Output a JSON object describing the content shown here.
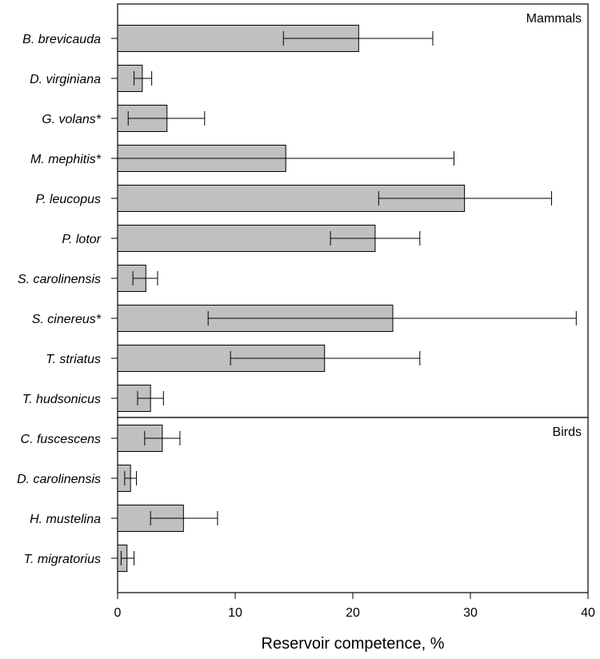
{
  "chart_data": {
    "type": "bar",
    "orientation": "horizontal",
    "xlabel": "Reservoir competence, %",
    "xlim": [
      0,
      40
    ],
    "xticks": [
      "0",
      "10",
      "20",
      "30",
      "40"
    ],
    "grid": false,
    "colors": {
      "bar_fill": "#c0c0c0",
      "bar_stroke": "#000000"
    },
    "groups": [
      {
        "name": "Mammals",
        "categories": [
          "B. brevicauda",
          "D. virginiana",
          "G. volans*",
          "M. mephitis*",
          "P. leucopus",
          "P. lotor",
          "S. carolinensis",
          "S. cinereus*",
          "T. striatus",
          "T. hudsonicus"
        ],
        "values": [
          20.5,
          2.1,
          4.2,
          14.3,
          29.5,
          21.9,
          2.4,
          23.4,
          17.6,
          2.8
        ],
        "error_low": [
          14.1,
          1.4,
          0.9,
          0.0,
          22.2,
          18.1,
          1.3,
          7.7,
          9.6,
          1.7
        ],
        "error_high": [
          26.8,
          2.9,
          7.4,
          28.6,
          36.9,
          25.7,
          3.4,
          39.0,
          25.7,
          3.9
        ]
      },
      {
        "name": "Birds",
        "categories": [
          "C. fuscescens",
          "D. carolinensis",
          "H. mustelina",
          "T. migratorius"
        ],
        "values": [
          3.8,
          1.1,
          5.6,
          0.8
        ],
        "error_low": [
          2.3,
          0.6,
          2.8,
          0.3
        ],
        "error_high": [
          5.3,
          1.6,
          8.5,
          1.4
        ]
      }
    ]
  }
}
